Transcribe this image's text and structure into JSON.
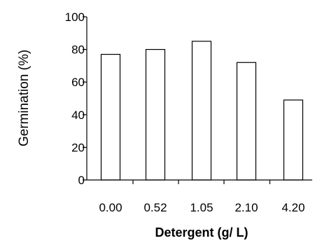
{
  "chart_data": {
    "type": "bar",
    "categories": [
      "0.00",
      "0.52",
      "1.05",
      "2.10",
      "4.20"
    ],
    "values": [
      77,
      80,
      85,
      72,
      49
    ],
    "title": "",
    "xlabel": "Detergent (g/ L)",
    "ylabel": "Germination (%)",
    "ylim": [
      0,
      100
    ],
    "yticks": [
      0,
      20,
      40,
      60,
      80,
      100
    ],
    "grid": false,
    "bar_fill": "#ffffff",
    "bar_stroke": "#000000"
  }
}
